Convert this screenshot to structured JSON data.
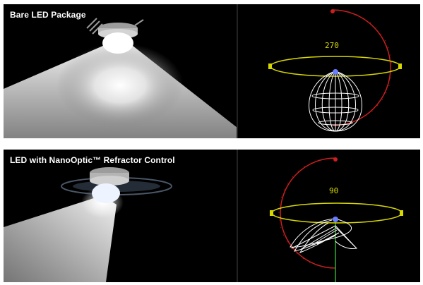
{
  "panels": [
    {
      "title": "Bare LED Package",
      "angle_readout": "270"
    },
    {
      "title": "LED with NanoOptic™ Refractor Control",
      "angle_readout": "90"
    }
  ],
  "colors": {
    "background": "#000000",
    "light_beam": "#ffffff",
    "ring_horizontal": "#d8d800",
    "arc_vertical": "#cc1f1f",
    "axis_vertical": "#2fae2f",
    "photometric_web": "#ffffff"
  }
}
